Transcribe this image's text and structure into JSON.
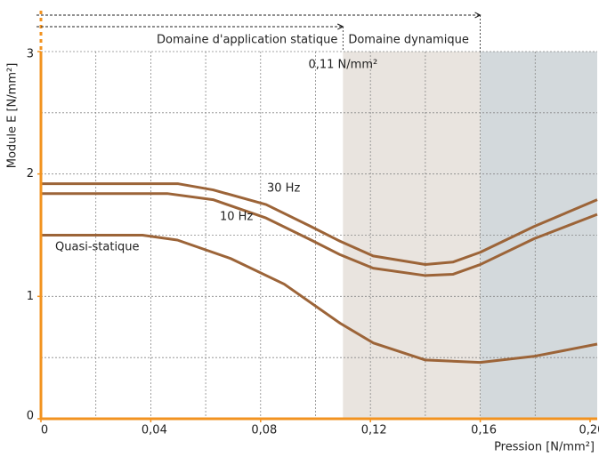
{
  "chart_data": {
    "type": "line",
    "xlabel": "Pression [N/mm²]",
    "ylabel": "Module E [N/mm²]",
    "static_label": "Domaine d'application statique",
    "dynamic_label": "Domaine dynamique",
    "threshold_label": "0,11 N/mm²",
    "xlim": [
      0,
      0.2026
    ],
    "ylim": [
      0,
      3
    ],
    "xticks": [
      0,
      {
        "value": 0.04,
        "label": "0,04"
      },
      {
        "value": 0.08,
        "label": "0,08"
      },
      {
        "value": 0.12,
        "label": "0,12"
      },
      {
        "value": 0.16,
        "label": "0,16"
      },
      {
        "value": 0.2,
        "label": "0,20"
      }
    ],
    "yticks": [
      0,
      1,
      2,
      3
    ],
    "xgrid": [
      0.02,
      0.04,
      0.06,
      0.08,
      0.1,
      0.12,
      0.14,
      0.16,
      0.18
    ],
    "ygrid": [
      0.5,
      1,
      1.5,
      2,
      2.5,
      3
    ],
    "axis_color": "#f29320",
    "regions": [
      {
        "from": 0.11,
        "to": 0.16,
        "color": "#e9e4df"
      },
      {
        "from": 0.16,
        "to": 0.2026,
        "color": "#d3d9dc"
      }
    ],
    "series": [
      {
        "name": "30 Hz",
        "color": "#9c6438",
        "x": [
          0,
          0.05,
          0.0627,
          0.082,
          0.0984,
          0.109,
          0.121,
          0.14,
          0.15,
          0.16,
          0.1795,
          0.2026
        ],
        "values": [
          1.92,
          1.92,
          1.87,
          1.75,
          1.57,
          1.45,
          1.33,
          1.26,
          1.28,
          1.36,
          1.57,
          1.79
        ]
      },
      {
        "name": "10 Hz",
        "color": "#9c6438",
        "x": [
          0,
          0.046,
          0.0627,
          0.082,
          0.0984,
          0.109,
          0.121,
          0.14,
          0.15,
          0.16,
          0.1795,
          0.2026
        ],
        "values": [
          1.84,
          1.84,
          1.79,
          1.64,
          1.46,
          1.34,
          1.23,
          1.17,
          1.18,
          1.26,
          1.47,
          1.67
        ]
      },
      {
        "name": "Quasi-statique",
        "color": "#9c6438",
        "x": [
          0,
          0.037,
          0.0497,
          0.069,
          0.0886,
          0.109,
          0.121,
          0.14,
          0.16,
          0.1795,
          0.2026
        ],
        "values": [
          1.5,
          1.5,
          1.46,
          1.31,
          1.1,
          0.78,
          0.62,
          0.48,
          0.46,
          0.51,
          0.61
        ]
      }
    ]
  }
}
